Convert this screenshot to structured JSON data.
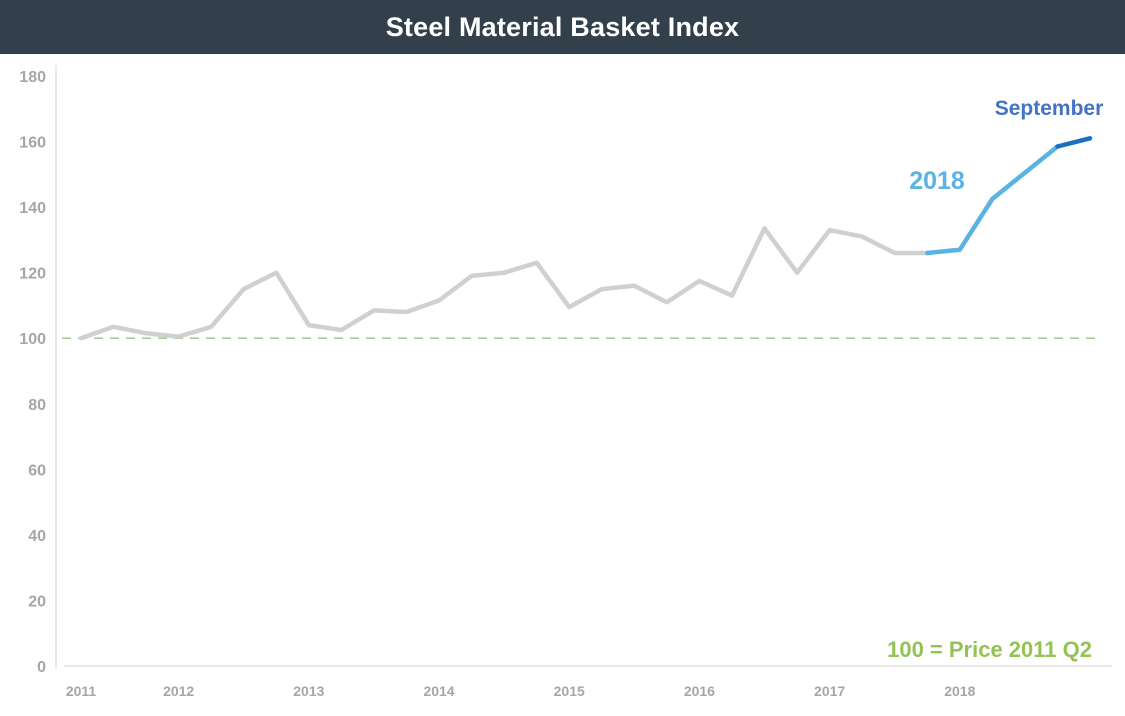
{
  "title": "Steel Material Basket Index",
  "chart_data": {
    "type": "line",
    "title": "Steel Material Basket Index",
    "ylim": [
      0,
      180
    ],
    "yticks": [
      0,
      20,
      40,
      60,
      80,
      100,
      120,
      140,
      160,
      180
    ],
    "x_labels": [
      "2011",
      "2012",
      "2013",
      "2014",
      "2015",
      "2016",
      "2017",
      "2018"
    ],
    "x_label_index": [
      0,
      3,
      7,
      11,
      15,
      19,
      23,
      27
    ],
    "x_min": 0,
    "x_max": 31,
    "series": [
      {
        "color": "#d0d0d0",
        "x": [
          0,
          1,
          2,
          3,
          4,
          5,
          6,
          7,
          8,
          9,
          10,
          11,
          12,
          13,
          14,
          15,
          16,
          17,
          18,
          19,
          20,
          21,
          22,
          23,
          24,
          25,
          26
        ],
        "values": [
          100,
          103.5,
          101.5,
          100.5,
          103.5,
          115,
          120,
          104,
          102.5,
          108.5,
          108,
          111.5,
          119,
          120,
          123,
          109.5,
          115,
          116,
          111,
          117.5,
          113,
          133.5,
          120,
          133,
          131,
          126,
          126
        ]
      },
      {
        "color": "#5bb3e3",
        "x": [
          26,
          27,
          28,
          29,
          30
        ],
        "values": [
          126,
          127,
          142.5,
          150.5,
          158.5
        ]
      },
      {
        "color": "#1a6fbf",
        "x": [
          30,
          31
        ],
        "values": [
          158.5,
          161
        ]
      }
    ],
    "reference_line": {
      "value": 100,
      "color": "#a9d08e",
      "style": "dashed"
    },
    "annotations": [
      {
        "text": "2018",
        "color": "#5bb3e3"
      },
      {
        "text": "September",
        "color": "#4472c4"
      },
      {
        "text": "100 = Price 2011 Q2",
        "color": "#92c353"
      }
    ],
    "grid": false
  }
}
